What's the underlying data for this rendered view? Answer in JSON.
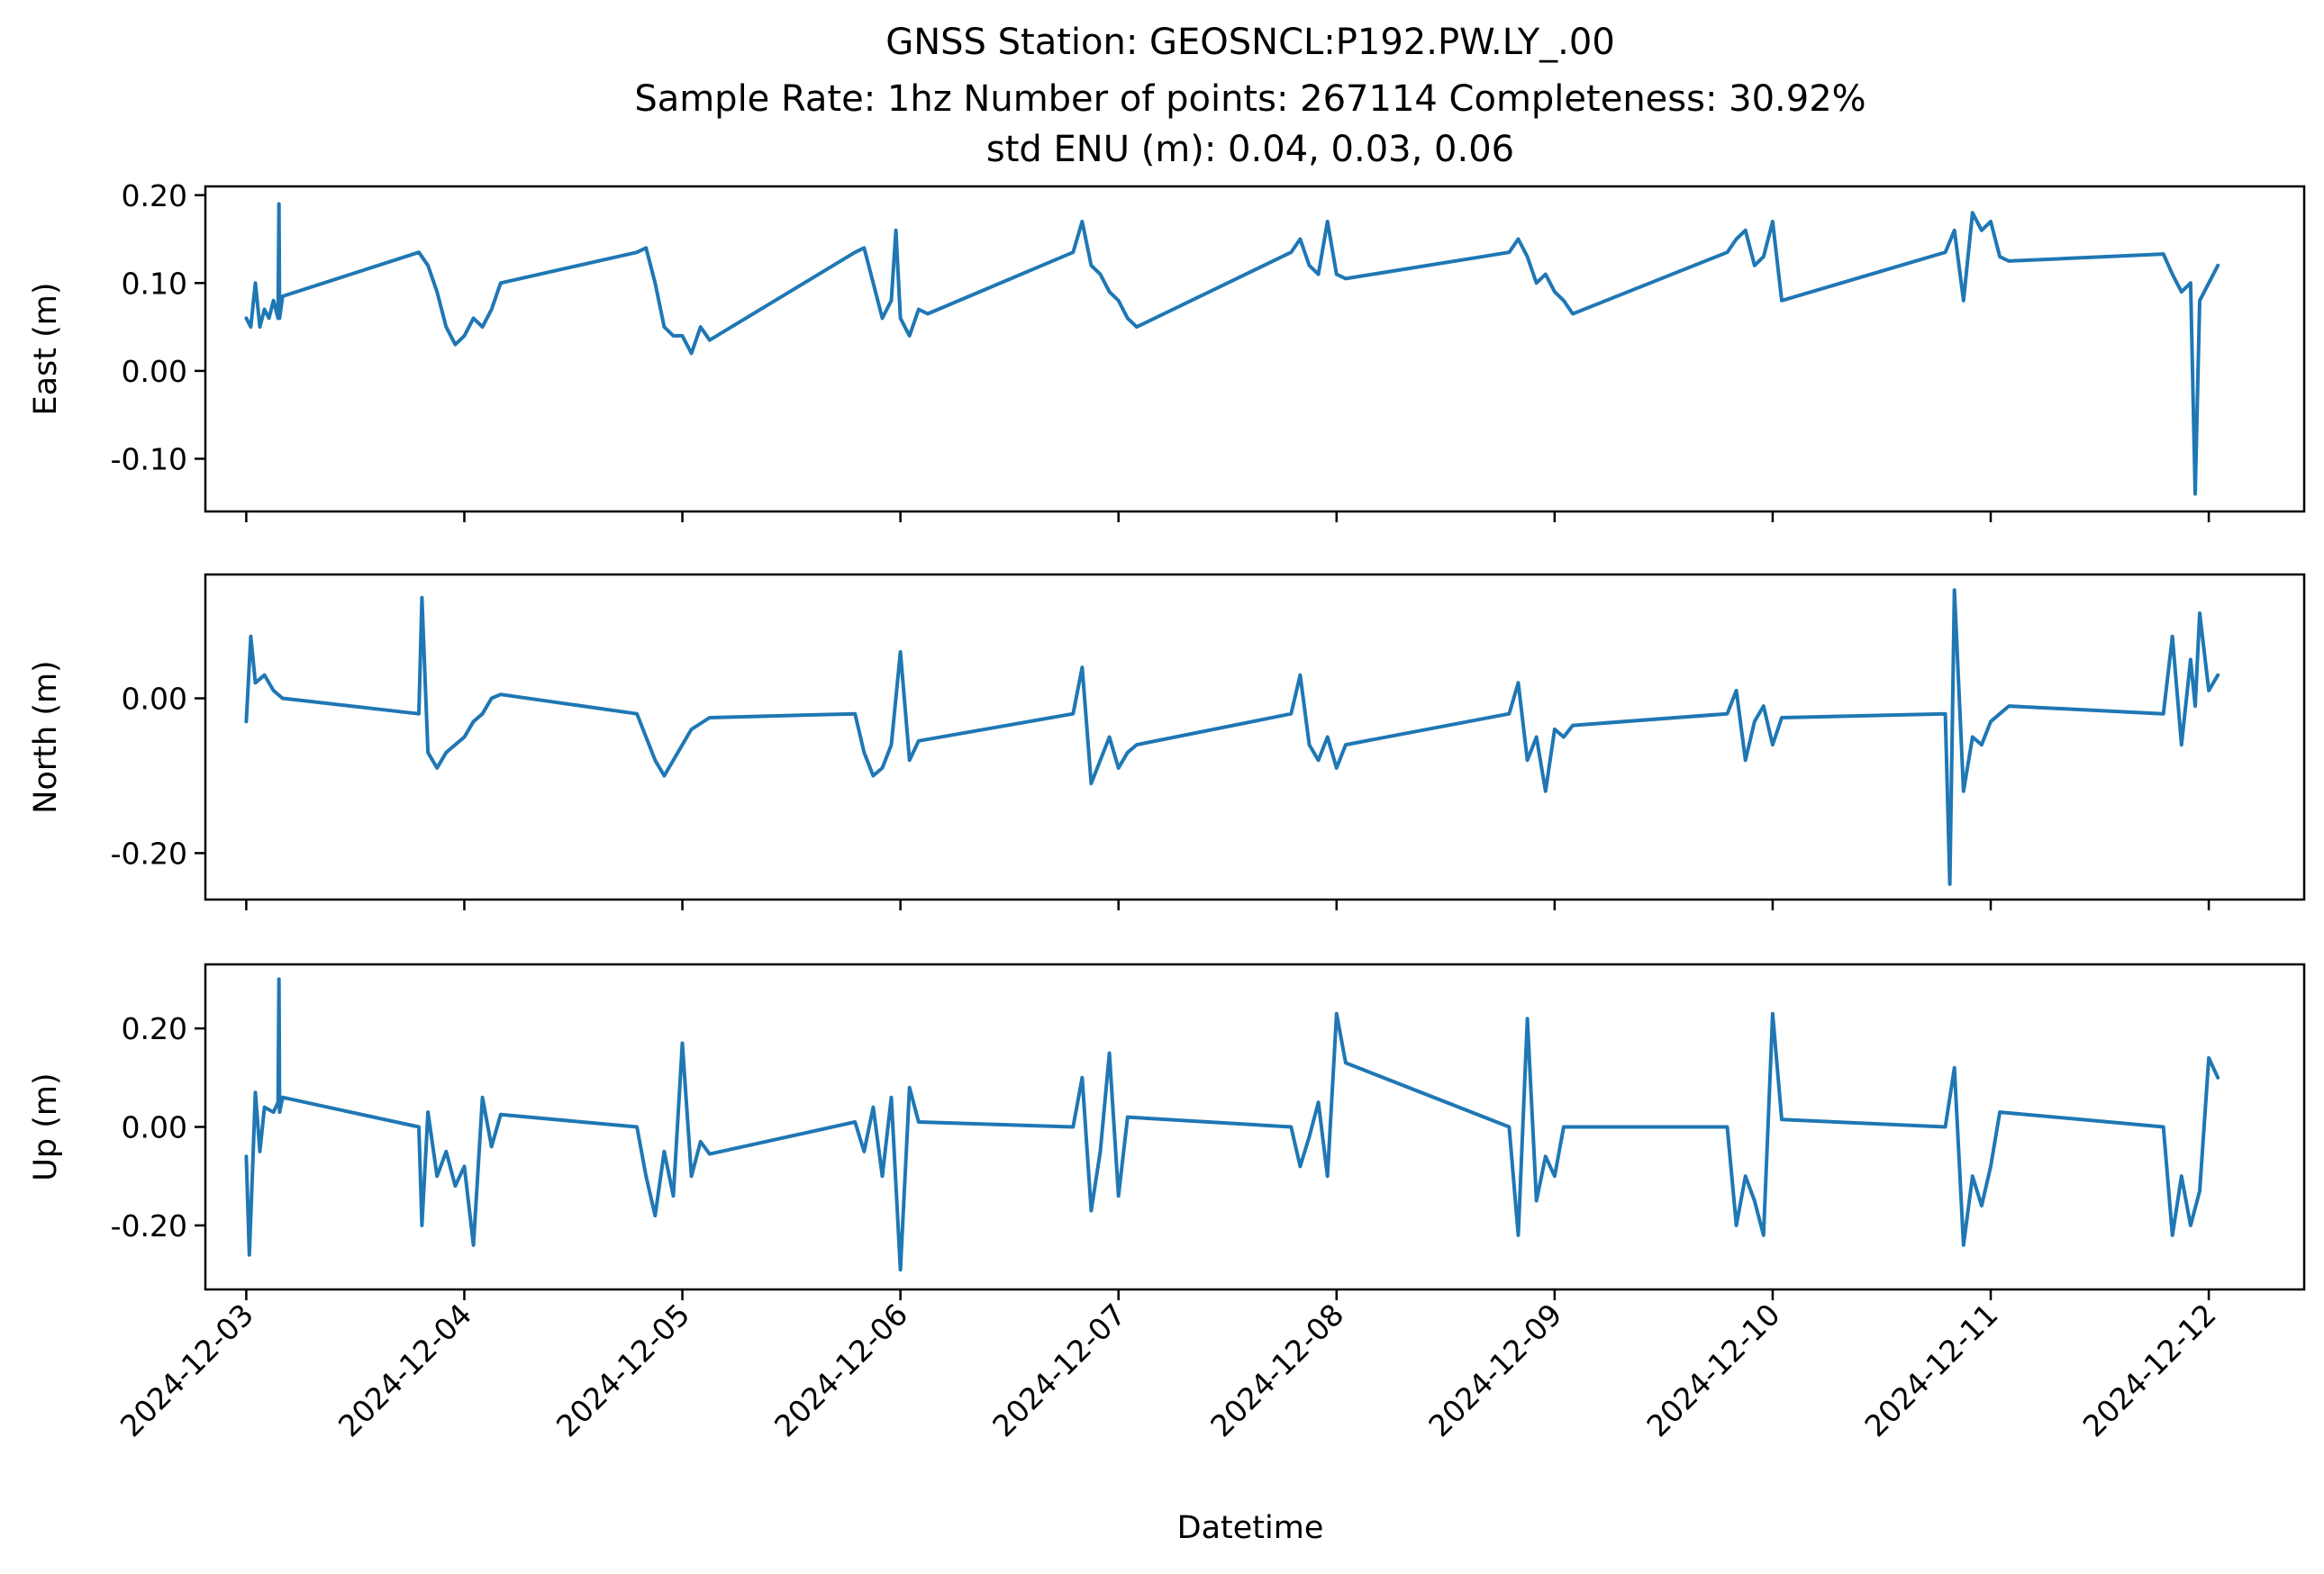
{
  "chart_data": {
    "type": "line",
    "title_lines": [
      "GNSS Station: GEOSNCL:P192.PW.LY_.00",
      "Sample Rate: 1hz   Number of points: 267114    Completeness:  30.92%",
      "std ENU (m):  0.04, 0.03, 0.06"
    ],
    "xlabel": "Datetime",
    "x_ticks": [
      "2024-12-03",
      "2024-12-04",
      "2024-12-05",
      "2024-12-06",
      "2024-12-07",
      "2024-12-08",
      "2024-12-09",
      "2024-12-10",
      "2024-12-11",
      "2024-12-12"
    ],
    "xlim": [
      "2024-12-02T19:30",
      "2024-12-12T10:30"
    ],
    "line_color": "#1f77b4",
    "panels": [
      {
        "ylabel": "East (m)",
        "ylim": [
          -0.16,
          0.21
        ],
        "y_ticks": [
          {
            "v": 0.2,
            "label": "0.20"
          },
          {
            "v": 0.1,
            "label": "0.10"
          },
          {
            "v": 0.0,
            "label": "0.00"
          },
          {
            "v": -0.1,
            "label": "-0.10"
          }
        ],
        "series": [
          {
            "x": [
              "2024-12-03T00:00",
              "2024-12-03T00:30",
              "2024-12-03T01:00",
              "2024-12-03T01:30",
              "2024-12-03T02:00",
              "2024-12-03T02:30",
              "2024-12-03T03:00",
              "2024-12-03T03:30",
              "2024-12-03T03:36",
              "2024-12-03T03:40",
              "2024-12-03T04:00",
              "2024-12-03T19:00",
              "2024-12-03T20:00",
              "2024-12-03T21:00",
              "2024-12-03T22:00",
              "2024-12-03T23:00",
              "2024-12-04T00:00",
              "2024-12-04T01:00",
              "2024-12-04T02:00",
              "2024-12-04T03:00",
              "2024-12-04T04:00",
              "2024-12-04T19:00",
              "2024-12-04T20:00",
              "2024-12-04T21:00",
              "2024-12-04T22:00",
              "2024-12-04T23:00",
              "2024-12-05T00:00",
              "2024-12-05T01:00",
              "2024-12-05T02:00",
              "2024-12-05T03:00",
              "2024-12-05T19:00",
              "2024-12-05T20:00",
              "2024-12-05T21:00",
              "2024-12-05T22:00",
              "2024-12-05T23:00",
              "2024-12-05T23:30",
              "2024-12-06T00:00",
              "2024-12-06T01:00",
              "2024-12-06T02:00",
              "2024-12-06T03:00",
              "2024-12-06T19:00",
              "2024-12-06T20:00",
              "2024-12-06T21:00",
              "2024-12-06T22:00",
              "2024-12-06T23:00",
              "2024-12-07T00:00",
              "2024-12-07T01:00",
              "2024-12-07T02:00",
              "2024-12-07T19:00",
              "2024-12-07T20:00",
              "2024-12-07T21:00",
              "2024-12-07T22:00",
              "2024-12-07T23:00",
              "2024-12-08T00:00",
              "2024-12-08T01:00",
              "2024-12-08T19:00",
              "2024-12-08T20:00",
              "2024-12-08T21:00",
              "2024-12-08T22:00",
              "2024-12-08T23:00",
              "2024-12-09T00:00",
              "2024-12-09T01:00",
              "2024-12-09T02:00",
              "2024-12-09T19:00",
              "2024-12-09T20:00",
              "2024-12-09T21:00",
              "2024-12-09T22:00",
              "2024-12-09T23:00",
              "2024-12-10T00:00",
              "2024-12-10T01:00",
              "2024-12-10T19:00",
              "2024-12-10T20:00",
              "2024-12-10T21:00",
              "2024-12-10T22:00",
              "2024-12-10T23:00",
              "2024-12-11T00:00",
              "2024-12-11T01:00",
              "2024-12-11T02:00",
              "2024-12-11T19:00",
              "2024-12-11T20:00",
              "2024-12-11T21:00",
              "2024-12-11T22:00",
              "2024-12-11T22:30",
              "2024-12-11T23:00",
              "2024-12-12T00:00",
              "2024-12-12T01:00"
            ],
            "y": [
              0.06,
              0.05,
              0.1,
              0.05,
              0.07,
              0.06,
              0.08,
              0.06,
              0.19,
              0.06,
              0.085,
              0.135,
              0.12,
              0.09,
              0.05,
              0.03,
              0.04,
              0.06,
              0.05,
              0.07,
              0.1,
              0.135,
              0.14,
              0.1,
              0.05,
              0.04,
              0.04,
              0.02,
              0.05,
              0.035,
              0.135,
              0.14,
              0.1,
              0.06,
              0.08,
              0.16,
              0.06,
              0.04,
              0.07,
              0.065,
              0.135,
              0.17,
              0.12,
              0.11,
              0.09,
              0.08,
              0.06,
              0.05,
              0.135,
              0.15,
              0.12,
              0.11,
              0.17,
              0.11,
              0.105,
              0.135,
              0.15,
              0.13,
              0.1,
              0.11,
              0.09,
              0.08,
              0.065,
              0.135,
              0.15,
              0.16,
              0.12,
              0.13,
              0.17,
              0.08,
              0.135,
              0.16,
              0.08,
              0.18,
              0.16,
              0.17,
              0.13,
              0.125,
              0.133,
              0.11,
              0.09,
              0.1,
              -0.14,
              0.08,
              0.1,
              0.12
            ]
          }
        ]
      },
      {
        "ylabel": "North (m)",
        "ylim": [
          -0.26,
          0.16
        ],
        "y_ticks": [
          {
            "v": 0.0,
            "label": "0.00"
          },
          {
            "v": -0.2,
            "label": "-0.20"
          }
        ],
        "series": [
          {
            "x": [
              "2024-12-03T00:00",
              "2024-12-03T00:30",
              "2024-12-03T01:00",
              "2024-12-03T02:00",
              "2024-12-03T03:00",
              "2024-12-03T04:00",
              "2024-12-03T19:00",
              "2024-12-03T19:20",
              "2024-12-03T20:00",
              "2024-12-03T21:00",
              "2024-12-03T22:00",
              "2024-12-04T00:00",
              "2024-12-04T01:00",
              "2024-12-04T02:00",
              "2024-12-04T03:00",
              "2024-12-04T04:00",
              "2024-12-04T19:00",
              "2024-12-04T20:00",
              "2024-12-04T21:00",
              "2024-12-04T22:00",
              "2024-12-05T00:00",
              "2024-12-05T01:00",
              "2024-12-05T03:00",
              "2024-12-05T19:00",
              "2024-12-05T20:00",
              "2024-12-05T21:00",
              "2024-12-05T22:00",
              "2024-12-05T23:00",
              "2024-12-06T00:00",
              "2024-12-06T01:00",
              "2024-12-06T02:00",
              "2024-12-06T19:00",
              "2024-12-06T20:00",
              "2024-12-06T21:00",
              "2024-12-06T22:00",
              "2024-12-06T23:00",
              "2024-12-07T00:00",
              "2024-12-07T01:00",
              "2024-12-07T02:00",
              "2024-12-07T19:00",
              "2024-12-07T20:00",
              "2024-12-07T21:00",
              "2024-12-07T22:00",
              "2024-12-07T23:00",
              "2024-12-08T00:00",
              "2024-12-08T01:00",
              "2024-12-08T19:00",
              "2024-12-08T20:00",
              "2024-12-08T21:00",
              "2024-12-08T22:00",
              "2024-12-08T23:00",
              "2024-12-09T00:00",
              "2024-12-09T01:00",
              "2024-12-09T02:00",
              "2024-12-09T19:00",
              "2024-12-09T20:00",
              "2024-12-09T21:00",
              "2024-12-09T22:00",
              "2024-12-09T23:00",
              "2024-12-10T00:00",
              "2024-12-10T01:00",
              "2024-12-10T19:00",
              "2024-12-10T19:30",
              "2024-12-10T20:00",
              "2024-12-10T21:00",
              "2024-12-10T22:00",
              "2024-12-10T23:00",
              "2024-12-11T00:00",
              "2024-12-11T01:00",
              "2024-12-11T02:00",
              "2024-12-11T19:00",
              "2024-12-11T20:00",
              "2024-12-11T21:00",
              "2024-12-11T22:00",
              "2024-12-11T22:30",
              "2024-12-11T23:00",
              "2024-12-12T00:00",
              "2024-12-12T01:00"
            ],
            "y": [
              -0.03,
              0.08,
              0.02,
              0.03,
              0.01,
              0.0,
              -0.02,
              0.13,
              -0.07,
              -0.09,
              -0.07,
              -0.05,
              -0.03,
              -0.02,
              0.0,
              0.005,
              -0.02,
              -0.05,
              -0.08,
              -0.1,
              -0.06,
              -0.04,
              -0.025,
              -0.02,
              -0.07,
              -0.1,
              -0.09,
              -0.06,
              0.06,
              -0.08,
              -0.055,
              -0.02,
              0.04,
              -0.11,
              -0.08,
              -0.05,
              -0.09,
              -0.07,
              -0.06,
              -0.02,
              0.03,
              -0.06,
              -0.08,
              -0.05,
              -0.09,
              -0.06,
              -0.02,
              0.02,
              -0.08,
              -0.05,
              -0.12,
              -0.04,
              -0.05,
              -0.035,
              -0.02,
              0.01,
              -0.08,
              -0.03,
              -0.01,
              -0.06,
              -0.025,
              -0.02,
              -0.24,
              0.14,
              -0.12,
              -0.05,
              -0.06,
              -0.03,
              -0.02,
              -0.01,
              -0.02,
              0.08,
              -0.06,
              0.05,
              -0.01,
              0.11,
              0.01,
              0.03
            ]
          }
        ]
      },
      {
        "ylabel": "Up (m)",
        "ylim": [
          -0.33,
          0.33
        ],
        "y_ticks": [
          {
            "v": 0.2,
            "label": "0.20"
          },
          {
            "v": 0.0,
            "label": "0.00"
          },
          {
            "v": -0.2,
            "label": "-0.20"
          }
        ],
        "series": [
          {
            "x": [
              "2024-12-03T00:00",
              "2024-12-03T00:20",
              "2024-12-03T00:40",
              "2024-12-03T01:00",
              "2024-12-03T01:30",
              "2024-12-03T02:00",
              "2024-12-03T03:00",
              "2024-12-03T03:30",
              "2024-12-03T03:36",
              "2024-12-03T03:40",
              "2024-12-03T04:00",
              "2024-12-03T19:00",
              "2024-12-03T19:20",
              "2024-12-03T20:00",
              "2024-12-03T21:00",
              "2024-12-03T22:00",
              "2024-12-03T23:00",
              "2024-12-04T00:00",
              "2024-12-04T01:00",
              "2024-12-04T02:00",
              "2024-12-04T03:00",
              "2024-12-04T04:00",
              "2024-12-04T19:00",
              "2024-12-04T20:00",
              "2024-12-04T21:00",
              "2024-12-04T22:00",
              "2024-12-04T23:00",
              "2024-12-05T00:00",
              "2024-12-05T01:00",
              "2024-12-05T02:00",
              "2024-12-05T03:00",
              "2024-12-05T19:00",
              "2024-12-05T20:00",
              "2024-12-05T21:00",
              "2024-12-05T22:00",
              "2024-12-05T23:00",
              "2024-12-06T00:00",
              "2024-12-06T01:00",
              "2024-12-06T02:00",
              "2024-12-06T19:00",
              "2024-12-06T20:00",
              "2024-12-06T21:00",
              "2024-12-06T22:00",
              "2024-12-06T23:00",
              "2024-12-07T00:00",
              "2024-12-07T01:00",
              "2024-12-07T19:00",
              "2024-12-07T20:00",
              "2024-12-07T21:00",
              "2024-12-07T22:00",
              "2024-12-07T23:00",
              "2024-12-08T00:00",
              "2024-12-08T01:00",
              "2024-12-08T19:00",
              "2024-12-08T20:00",
              "2024-12-08T21:00",
              "2024-12-08T22:00",
              "2024-12-08T23:00",
              "2024-12-09T00:00",
              "2024-12-09T01:00",
              "2024-12-09T19:00",
              "2024-12-09T20:00",
              "2024-12-09T21:00",
              "2024-12-09T22:00",
              "2024-12-09T23:00",
              "2024-12-10T00:00",
              "2024-12-10T01:00",
              "2024-12-10T19:00",
              "2024-12-10T20:00",
              "2024-12-10T21:00",
              "2024-12-10T22:00",
              "2024-12-10T23:00",
              "2024-12-11T00:00",
              "2024-12-11T01:00",
              "2024-12-11T19:00",
              "2024-12-11T20:00",
              "2024-12-11T21:00",
              "2024-12-11T22:00",
              "2024-12-11T23:00",
              "2024-12-12T00:00",
              "2024-12-12T01:00"
            ],
            "y": [
              -0.06,
              -0.26,
              -0.1,
              0.07,
              -0.05,
              0.04,
              0.03,
              0.05,
              0.3,
              0.03,
              0.06,
              0.0,
              -0.2,
              0.03,
              -0.1,
              -0.05,
              -0.12,
              -0.08,
              -0.24,
              0.06,
              -0.04,
              0.025,
              0.0,
              -0.1,
              -0.18,
              -0.05,
              -0.14,
              0.17,
              -0.1,
              -0.03,
              -0.055,
              0.01,
              -0.05,
              0.04,
              -0.1,
              0.06,
              -0.29,
              0.08,
              0.01,
              0.0,
              0.1,
              -0.17,
              -0.05,
              0.15,
              -0.14,
              0.02,
              0.0,
              -0.08,
              -0.02,
              0.05,
              -0.1,
              0.23,
              0.13,
              0.0,
              -0.22,
              0.22,
              -0.15,
              -0.06,
              -0.1,
              0.0,
              0.0,
              -0.2,
              -0.1,
              -0.15,
              -0.22,
              0.23,
              0.015,
              0.0,
              0.12,
              -0.24,
              -0.1,
              -0.16,
              -0.08,
              0.03,
              0.0,
              -0.22,
              -0.1,
              -0.2,
              -0.13,
              0.14,
              0.1
            ]
          }
        ]
      }
    ]
  }
}
